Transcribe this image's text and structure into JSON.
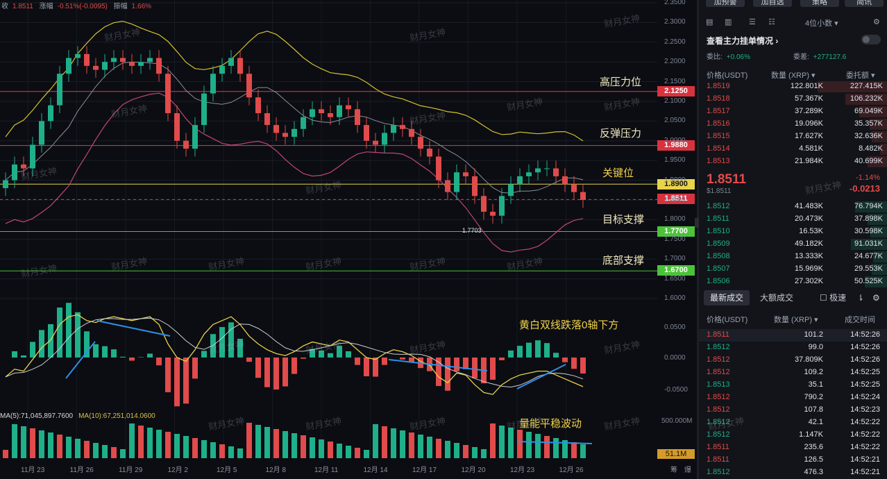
{
  "info_bar": {
    "close_label": "收",
    "close_value": "1.8511",
    "change_label": "涨幅",
    "change_value": "-0.51%(-0.0095)",
    "amp_label": "振幅",
    "amp_value": "1.66%"
  },
  "annotations": {
    "high_pressure": "高压力位",
    "rebound_pressure": "反弹压力",
    "key_level": "关键位",
    "target_support": "目标支撑",
    "bottom_support": "底部支撑",
    "macd_note": "黄白双线跌落0轴下方",
    "volume_note": "量能平稳波动"
  },
  "price_tags": {
    "r1": "2.1250",
    "r2": "1.9880",
    "key": "1.8900",
    "current": "1.8511",
    "s1": "1.7700",
    "s2": "1.6700"
  },
  "low_label": "1.7703",
  "watermark": "财月女神",
  "volume": {
    "ma5": "MA(5):71,045,897.7600",
    "ma10": "MA(10):67,251,014.0600",
    "badge": "51.1M",
    "axis_top": "500.000M"
  },
  "corner": {
    "a": "筹",
    "b": "爆"
  },
  "chart_data": {
    "type": "candlestick",
    "price_axis": [
      "2.3500",
      "2.3000",
      "2.2500",
      "2.2000",
      "2.1500",
      "2.1000",
      "2.0500",
      "2.0000",
      "1.9500",
      "1.9000",
      "1.8500",
      "1.8000",
      "1.7500",
      "1.7000",
      "1.6500",
      "1.6000"
    ],
    "macd_axis": [
      "0.0500",
      "0.0000",
      "-0.0500"
    ],
    "x_labels": [
      "11月 23",
      "11月 26",
      "11月 29",
      "12月 2",
      "12月 5",
      "12月 8",
      "12月 11",
      "12月 14",
      "12月 17",
      "12月 20",
      "12月 23",
      "12月 26"
    ],
    "price_levels": [
      {
        "value": 2.125,
        "color": "#e03e4a"
      },
      {
        "value": 1.988,
        "color": "#e03e4a"
      },
      {
        "value": 1.89,
        "color": "#e8d34a"
      },
      {
        "value": 1.8511,
        "color": "#e03e4a"
      },
      {
        "value": 1.77,
        "color": "#4cc23a"
      },
      {
        "value": 1.67,
        "color": "#4cc23a"
      }
    ],
    "closes": [
      1.9,
      1.94,
      1.93,
      1.99,
      2.05,
      2.09,
      2.17,
      2.21,
      2.22,
      2.19,
      2.18,
      2.2,
      2.21,
      2.2,
      2.19,
      2.2,
      2.21,
      2.17,
      2.07,
      2.0,
      1.98,
      2.04,
      2.12,
      2.17,
      2.19,
      2.21,
      2.17,
      2.11,
      2.07,
      2.04,
      2.02,
      2.01,
      2.03,
      2.06,
      2.08,
      2.07,
      2.06,
      2.09,
      2.08,
      2.04,
      2.0,
      1.99,
      2.02,
      2.04,
      2.03,
      2.01,
      1.98,
      1.96,
      1.9,
      1.87,
      1.92,
      1.91,
      1.86,
      1.82,
      1.81,
      1.86,
      1.89,
      1.91,
      1.92,
      1.93,
      1.93,
      1.91,
      1.89,
      1.87,
      1.85
    ]
  }
}
